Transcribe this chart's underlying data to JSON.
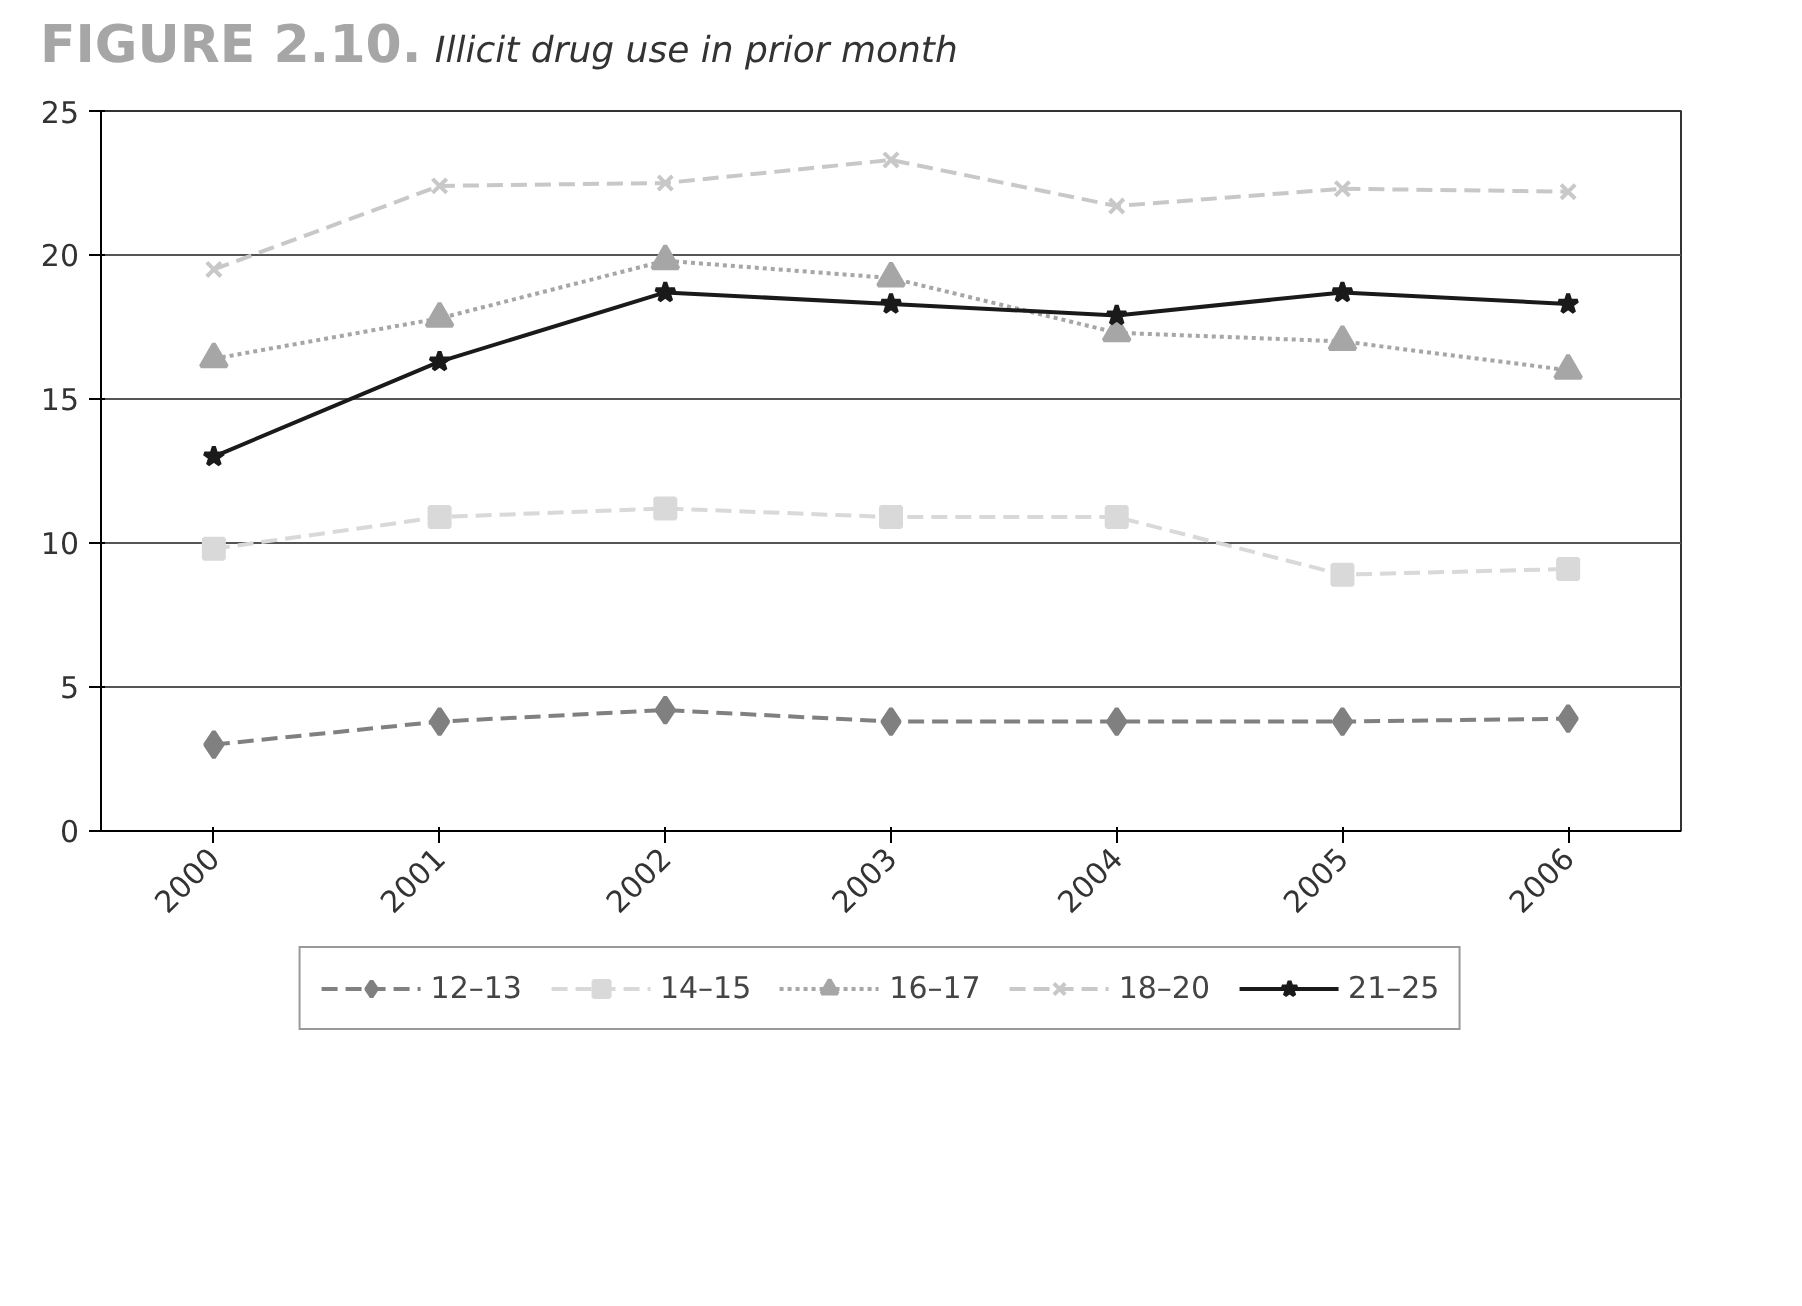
{
  "chart_data": {
    "type": "line",
    "title": "FIGURE 2.10.",
    "subtitle": "Illicit drug use in prior month",
    "categories": [
      "2000",
      "2001",
      "2002",
      "2003",
      "2004",
      "2005",
      "2006"
    ],
    "ylim": [
      0,
      25
    ],
    "yticks": [
      0,
      5,
      10,
      15,
      20,
      25
    ],
    "grid": "y",
    "legend": "bottom",
    "series": [
      {
        "name": "12–13",
        "color": "#808080",
        "marker": "diamond",
        "line_style": "dashed",
        "values": [
          3.0,
          3.8,
          4.2,
          3.8,
          3.8,
          3.8,
          3.9
        ]
      },
      {
        "name": "14–15",
        "color": "#d9d9d9",
        "marker": "square",
        "line_style": "dashed",
        "values": [
          9.8,
          10.9,
          11.2,
          10.9,
          10.9,
          8.9,
          9.1
        ]
      },
      {
        "name": "16–17",
        "color": "#a6a6a6",
        "marker": "triangle",
        "line_style": "dotted",
        "values": [
          16.4,
          17.8,
          19.8,
          19.2,
          17.3,
          17.0,
          16.0
        ]
      },
      {
        "name": "18–20",
        "color": "#c8c8c8",
        "marker": "cross",
        "line_style": "dashed",
        "values": [
          19.5,
          22.4,
          22.5,
          23.3,
          21.7,
          22.3,
          22.2
        ]
      },
      {
        "name": "21–25",
        "color": "#1a1a1a",
        "marker": "star",
        "line_style": "solid",
        "values": [
          13.0,
          16.3,
          18.7,
          18.3,
          17.9,
          18.7,
          18.3
        ]
      }
    ]
  }
}
